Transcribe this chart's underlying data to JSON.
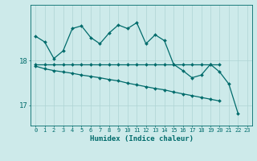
{
  "xlabel": "Humidex (Indice chaleur)",
  "x_values": [
    0,
    1,
    2,
    3,
    4,
    5,
    6,
    7,
    8,
    9,
    10,
    11,
    12,
    13,
    14,
    15,
    16,
    17,
    18,
    19,
    20,
    21,
    22,
    23
  ],
  "line1_y": [
    18.55,
    18.42,
    18.05,
    18.22,
    18.72,
    18.78,
    18.52,
    18.38,
    18.62,
    18.8,
    18.72,
    18.85,
    18.38,
    18.58,
    18.45,
    17.92,
    17.78,
    17.62,
    17.68,
    17.92,
    17.75,
    17.48,
    16.82,
    null
  ],
  "line2_y": [
    17.92,
    17.92,
    17.92,
    17.92,
    17.92,
    17.92,
    17.92,
    17.92,
    17.92,
    17.92,
    17.92,
    17.92,
    17.92,
    17.92,
    17.92,
    17.92,
    17.92,
    17.92,
    17.92,
    17.92,
    17.92,
    null,
    null,
    null
  ],
  "line3_y": [
    17.88,
    17.82,
    17.78,
    17.75,
    17.72,
    17.68,
    17.65,
    17.62,
    17.58,
    17.55,
    17.5,
    17.46,
    17.42,
    17.38,
    17.35,
    17.3,
    17.26,
    17.22,
    17.18,
    17.14,
    17.1,
    null,
    null,
    null
  ],
  "bg_color": "#cdeaea",
  "line_color": "#006b6b",
  "grid_color": "#aed4d4",
  "yticks": [
    17,
    18
  ],
  "ylim": [
    16.55,
    19.25
  ],
  "xlim": [
    -0.5,
    23.5
  ]
}
